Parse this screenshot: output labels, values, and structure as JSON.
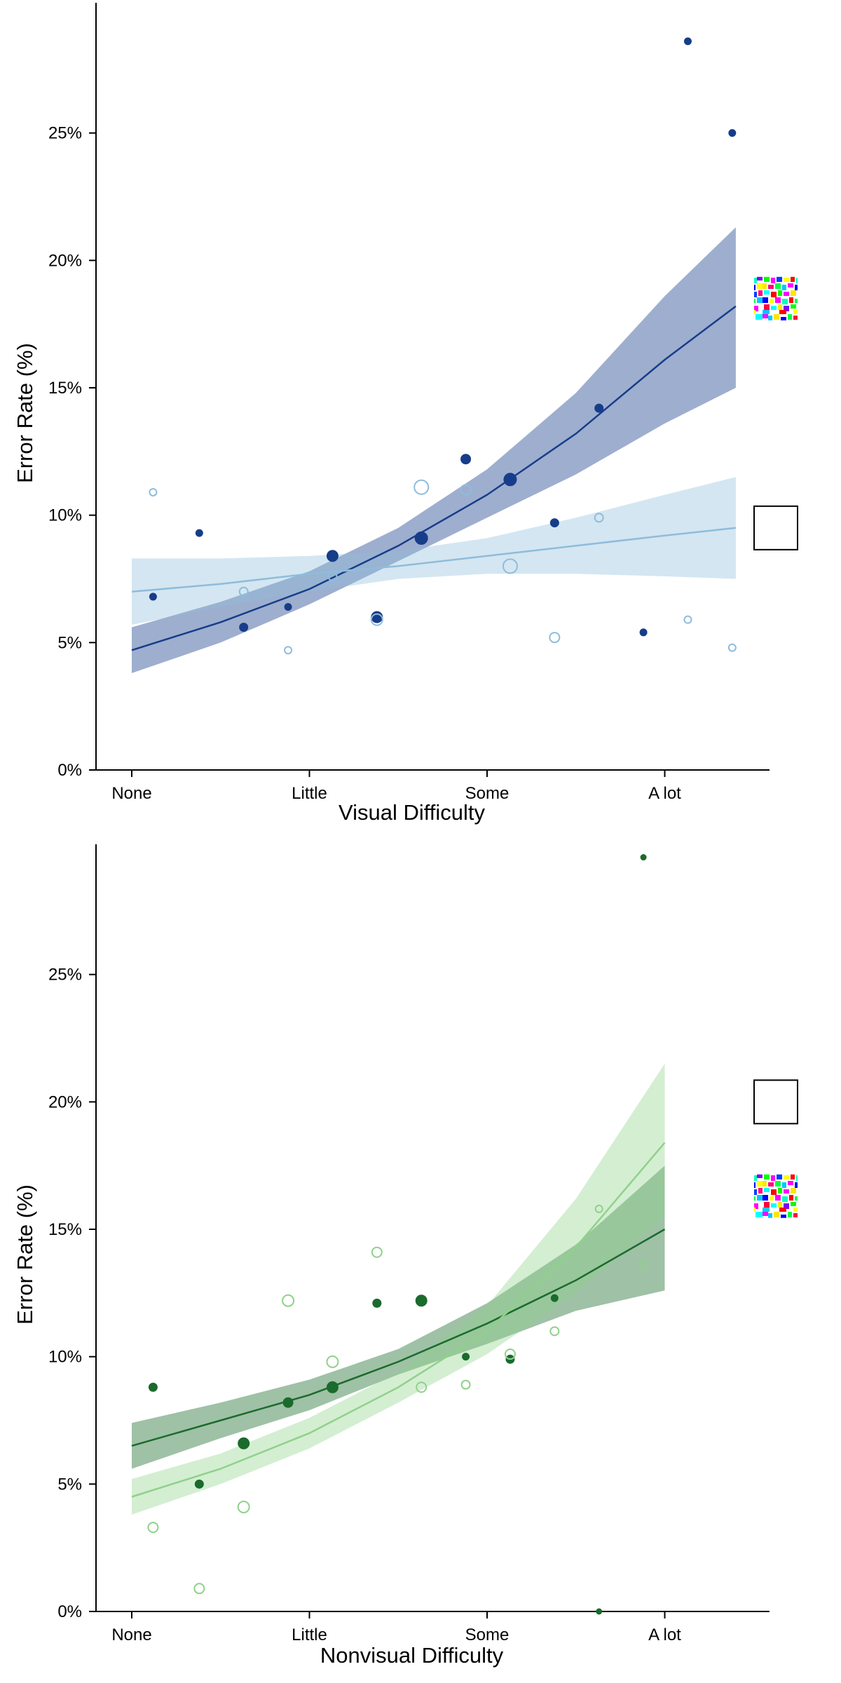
{
  "chart_data": [
    {
      "type": "scatter",
      "xlabel": "Visual Difficulty",
      "ylabel": "Error Rate (%)",
      "x_categories": [
        "None",
        "Little",
        "Some",
        "A lot"
      ],
      "xlim": [
        -0.2,
        3.6
      ],
      "ylim": [
        0,
        30
      ],
      "y_ticks": [
        0,
        5,
        10,
        15,
        20,
        25
      ],
      "y_tick_labels": [
        "0%",
        "5%",
        "10%",
        "15%",
        "20%",
        "25%"
      ],
      "grid": false,
      "legend": {
        "position": "right",
        "entries": [
          {
            "style": "pattern",
            "y": 18.5
          },
          {
            "style": "empty",
            "y": 9.5
          }
        ]
      },
      "series": [
        {
          "color": "#173d8a",
          "filled": true,
          "points": [
            {
              "x": 0.12,
              "y": 6.8,
              "size": 5
            },
            {
              "x": 0.38,
              "y": 9.3,
              "size": 5
            },
            {
              "x": 0.63,
              "y": 5.6,
              "size": 6
            },
            {
              "x": 0.88,
              "y": 6.4,
              "size": 5
            },
            {
              "x": 1.13,
              "y": 8.4,
              "size": 8
            },
            {
              "x": 1.38,
              "y": 6.0,
              "size": 8
            },
            {
              "x": 1.63,
              "y": 9.1,
              "size": 9
            },
            {
              "x": 1.88,
              "y": 12.2,
              "size": 7
            },
            {
              "x": 2.13,
              "y": 11.4,
              "size": 9
            },
            {
              "x": 2.38,
              "y": 9.7,
              "size": 6
            },
            {
              "x": 2.63,
              "y": 14.2,
              "size": 6
            },
            {
              "x": 2.88,
              "y": 5.4,
              "size": 5
            },
            {
              "x": 3.13,
              "y": 28.6,
              "size": 5
            },
            {
              "x": 3.38,
              "y": 25.0,
              "size": 5
            }
          ],
          "fit": {
            "x": [
              0,
              0.5,
              1,
              1.5,
              2,
              2.5,
              3,
              3.4
            ],
            "y": [
              4.7,
              5.8,
              7.1,
              8.8,
              10.8,
              13.2,
              16.1,
              18.2
            ],
            "lower": [
              3.8,
              5.0,
              6.5,
              8.2,
              9.9,
              11.6,
              13.6,
              15.0
            ],
            "upper": [
              5.6,
              6.6,
              7.8,
              9.5,
              11.8,
              14.8,
              18.6,
              21.3
            ]
          }
        },
        {
          "color": "#8fbcdb",
          "filled": false,
          "points": [
            {
              "x": 0.12,
              "y": 10.9,
              "size": 5
            },
            {
              "x": 0.63,
              "y": 7.0,
              "size": 6
            },
            {
              "x": 0.88,
              "y": 4.7,
              "size": 5
            },
            {
              "x": 1.13,
              "y": 7.6,
              "size": 6
            },
            {
              "x": 1.38,
              "y": 5.9,
              "size": 8
            },
            {
              "x": 1.63,
              "y": 11.1,
              "size": 10
            },
            {
              "x": 1.88,
              "y": 11.0,
              "size": 7
            },
            {
              "x": 2.13,
              "y": 8.0,
              "size": 10
            },
            {
              "x": 2.38,
              "y": 5.2,
              "size": 7
            },
            {
              "x": 2.63,
              "y": 9.9,
              "size": 6
            },
            {
              "x": 3.13,
              "y": 5.9,
              "size": 5
            },
            {
              "x": 3.38,
              "y": 4.8,
              "size": 5
            }
          ],
          "fit": {
            "x": [
              0,
              0.5,
              1,
              1.5,
              2,
              2.5,
              3,
              3.4
            ],
            "y": [
              7.0,
              7.3,
              7.7,
              8.0,
              8.4,
              8.8,
              9.2,
              9.5
            ],
            "lower": [
              5.7,
              6.4,
              7.0,
              7.5,
              7.7,
              7.7,
              7.6,
              7.5
            ],
            "upper": [
              8.3,
              8.3,
              8.4,
              8.6,
              9.1,
              9.9,
              10.8,
              11.5
            ]
          }
        }
      ]
    },
    {
      "type": "scatter",
      "xlabel": "Nonvisual Difficulty",
      "ylabel": "Error Rate (%)",
      "x_categories": [
        "None",
        "Little",
        "Some",
        "A lot"
      ],
      "xlim": [
        -0.2,
        3.6
      ],
      "ylim": [
        0,
        30
      ],
      "y_ticks": [
        0,
        5,
        10,
        15,
        20,
        25
      ],
      "y_tick_labels": [
        "0%",
        "5%",
        "10%",
        "15%",
        "20%",
        "25%"
      ],
      "grid": false,
      "legend": {
        "position": "right",
        "entries": [
          {
            "style": "empty",
            "y": 20.0
          },
          {
            "style": "pattern",
            "y": 16.3
          }
        ]
      },
      "series": [
        {
          "color": "#1a6b2c",
          "filled": true,
          "points": [
            {
              "x": 0.12,
              "y": 8.8,
              "size": 6
            },
            {
              "x": 0.38,
              "y": 5.0,
              "size": 6
            },
            {
              "x": 0.63,
              "y": 6.6,
              "size": 8
            },
            {
              "x": 0.88,
              "y": 8.2,
              "size": 7
            },
            {
              "x": 1.13,
              "y": 8.8,
              "size": 8
            },
            {
              "x": 1.38,
              "y": 12.1,
              "size": 6
            },
            {
              "x": 1.63,
              "y": 12.2,
              "size": 8
            },
            {
              "x": 1.88,
              "y": 10.0,
              "size": 5
            },
            {
              "x": 2.13,
              "y": 9.9,
              "size": 6
            },
            {
              "x": 2.38,
              "y": 12.3,
              "size": 5
            },
            {
              "x": 2.63,
              "y": 0.0,
              "size": 4
            },
            {
              "x": 2.88,
              "y": 29.6,
              "size": 4
            }
          ],
          "fit": {
            "x": [
              0,
              0.5,
              1,
              1.5,
              2,
              2.5,
              3
            ],
            "y": [
              6.5,
              7.5,
              8.5,
              9.8,
              11.3,
              13.0,
              15.0
            ],
            "lower": [
              5.6,
              6.8,
              7.9,
              9.3,
              10.5,
              11.8,
              12.6
            ],
            "upper": [
              7.4,
              8.2,
              9.1,
              10.3,
              12.1,
              14.4,
              17.5
            ]
          }
        },
        {
          "color": "#8fd18a",
          "filled": false,
          "points": [
            {
              "x": 0.12,
              "y": 3.3,
              "size": 7
            },
            {
              "x": 0.38,
              "y": 0.9,
              "size": 7
            },
            {
              "x": 0.63,
              "y": 4.1,
              "size": 8
            },
            {
              "x": 0.88,
              "y": 12.2,
              "size": 8
            },
            {
              "x": 1.13,
              "y": 9.8,
              "size": 8
            },
            {
              "x": 1.38,
              "y": 14.1,
              "size": 7
            },
            {
              "x": 1.63,
              "y": 8.8,
              "size": 7
            },
            {
              "x": 1.88,
              "y": 8.9,
              "size": 6
            },
            {
              "x": 2.13,
              "y": 10.1,
              "size": 7
            },
            {
              "x": 2.38,
              "y": 11.0,
              "size": 6
            },
            {
              "x": 2.63,
              "y": 15.8,
              "size": 5
            },
            {
              "x": 2.88,
              "y": 13.6,
              "size": 5
            }
          ],
          "fit": {
            "x": [
              0,
              0.5,
              1,
              1.5,
              2,
              2.5,
              3
            ],
            "y": [
              4.5,
              5.6,
              7.0,
              8.8,
              11.0,
              14.3,
              18.4
            ],
            "lower": [
              3.8,
              5.0,
              6.4,
              8.2,
              10.1,
              12.5,
              15.5
            ],
            "upper": [
              5.2,
              6.2,
              7.6,
              9.4,
              12.0,
              16.2,
              21.5
            ]
          }
        }
      ]
    }
  ]
}
